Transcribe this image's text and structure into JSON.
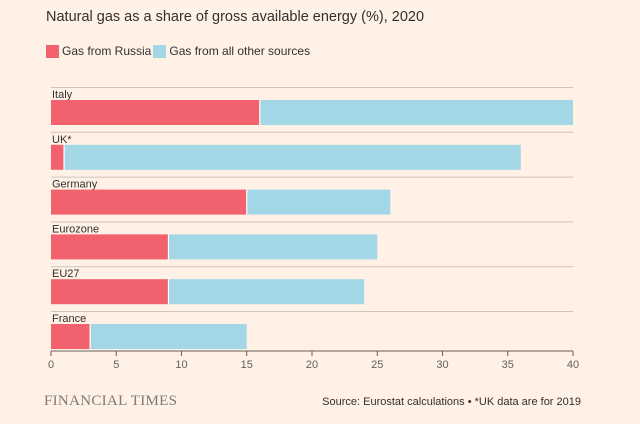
{
  "chart_data": {
    "type": "bar",
    "orientation": "horizontal",
    "stacked": true,
    "title": "Natural gas as a share of gross available energy (%), 2020",
    "categories": [
      "Italy",
      "UK*",
      "Germany",
      "Eurozone",
      "EU27",
      "France"
    ],
    "series": [
      {
        "name": "Gas from Russia",
        "color": "#f2626e",
        "values": [
          16,
          1,
          15,
          9,
          9,
          3
        ]
      },
      {
        "name": "Gas from all other sources",
        "color": "#a3d7e6",
        "values": [
          24,
          35,
          11,
          16,
          15,
          12
        ]
      }
    ],
    "xlim": [
      0,
      40
    ],
    "xticks": [
      0,
      5,
      10,
      15,
      20,
      25,
      30,
      35,
      40
    ],
    "legend_position": "top-left",
    "grid": false
  },
  "footer": {
    "brand": "FINANCIAL TIMES",
    "source": "Source: Eurostat calculations • *UK data are for 2019"
  }
}
